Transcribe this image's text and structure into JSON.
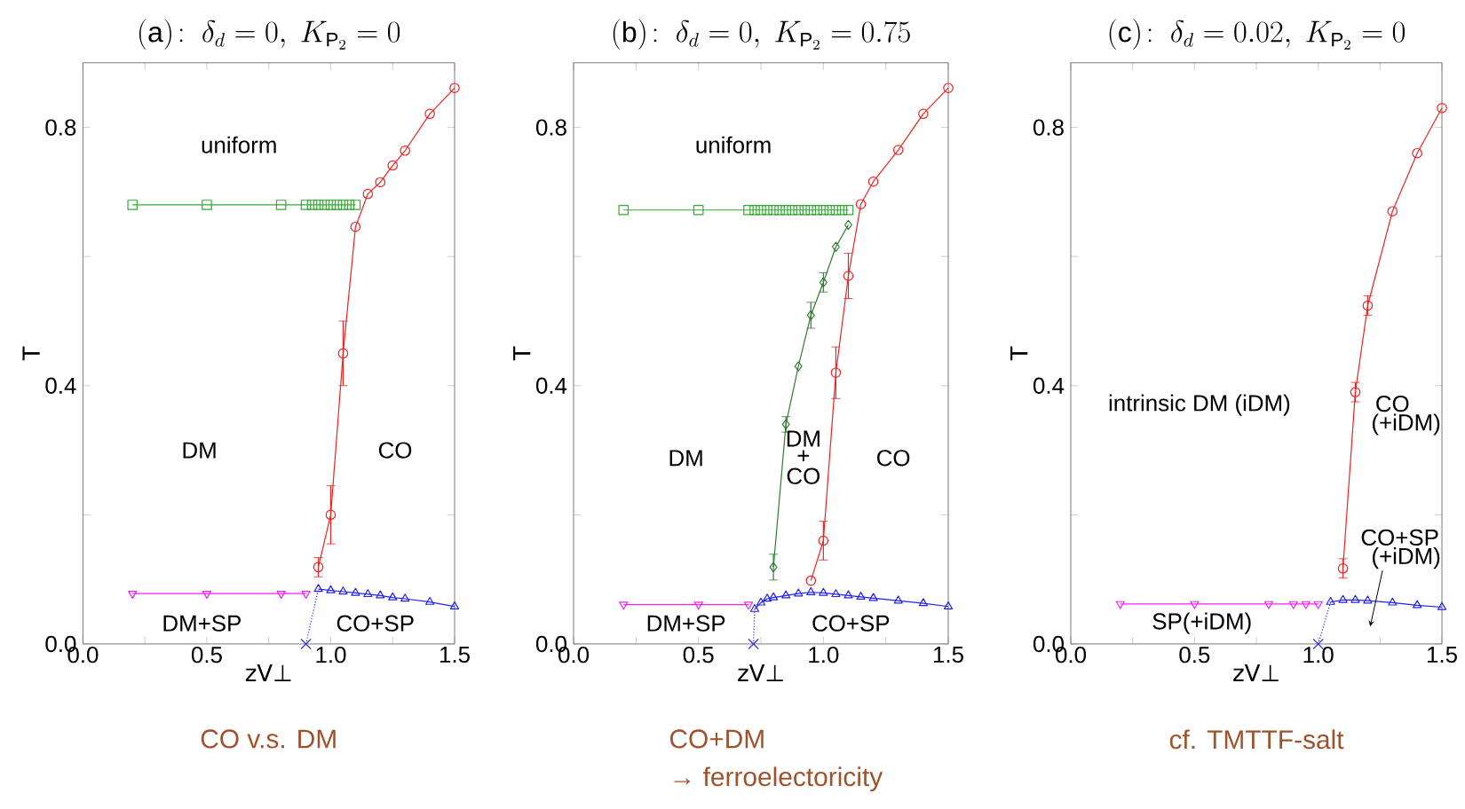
{
  "chart_data": [
    {
      "type": "line",
      "title": "\\mathrm{(a)}\\!:\\ \\delta_d = 0,\\ K_{\\mathrm{P}_2} = 0",
      "xlabel": "zV⊥",
      "ylabel": "T",
      "xlim": [
        0,
        1.5
      ],
      "ylim": [
        0,
        0.9
      ],
      "xticks": [
        {
          "value": 0,
          "label": "0.0"
        },
        {
          "value": 0.25,
          "label": null
        },
        {
          "value": 0.5,
          "label": "0.5"
        },
        {
          "value": 0.75,
          "label": null
        },
        {
          "value": 1,
          "label": "1.0"
        },
        {
          "value": 1.25,
          "label": null
        },
        {
          "value": 1.5,
          "label": "1.5"
        }
      ],
      "yticks": [
        {
          "value": 0,
          "label": "0.0"
        },
        {
          "value": 0.2,
          "label": null
        },
        {
          "value": 0.4,
          "label": "0.4"
        },
        {
          "value": 0.6,
          "label": null
        },
        {
          "value": 0.8,
          "label": "0.8"
        }
      ],
      "series": [
        {
          "type": "line",
          "color": "#33aa33",
          "marker": "square",
          "x": [
            0.2,
            0.5,
            0.8,
            0.9,
            0.925,
            0.95,
            0.975,
            1.0,
            1.025,
            1.05,
            1.075,
            1.1
          ],
          "values": [
            0.68,
            0.68,
            0.68,
            0.68,
            0.68,
            0.68,
            0.68,
            0.68,
            0.68,
            0.68,
            0.68,
            0.68
          ]
        },
        {
          "type": "line",
          "color": "#ee2222",
          "marker": "circle",
          "x": [
            0.95,
            1.0,
            1.05,
            1.1,
            1.15,
            1.2,
            1.25,
            1.3,
            1.4,
            1.5
          ],
          "values": [
            0.119,
            0.2,
            0.45,
            0.646,
            0.697,
            0.715,
            0.741,
            0.764,
            0.821,
            0.861
          ],
          "errors": [
            0.015,
            0.045,
            0.05,
            null,
            null,
            null,
            null,
            null,
            null,
            null
          ]
        },
        {
          "type": "line",
          "color": "#ee22ee",
          "marker": "triangle_down",
          "x": [
            0.2,
            0.5,
            0.8,
            0.9
          ],
          "values": [
            0.078,
            0.078,
            0.078,
            0.078
          ]
        },
        {
          "type": "line",
          "color": "#2222ee",
          "marker": "triangle",
          "x": [
            0.95,
            1.0,
            1.05,
            1.1,
            1.15,
            1.2,
            1.25,
            1.3,
            1.4,
            1.5
          ],
          "values": [
            0.085,
            0.083,
            0.081,
            0.079,
            0.077,
            0.075,
            0.072,
            0.07,
            0.065,
            0.058
          ]
        },
        {
          "type": "line",
          "color": "#2222ee",
          "marker": "none",
          "line_style": "dotted",
          "x": [
            0.9,
            0.95
          ],
          "values": [
            0,
            0.085
          ]
        },
        {
          "type": "scatter",
          "color": "#2222ee",
          "marker": "cross",
          "x": [
            0.9
          ],
          "values": [
            0
          ]
        }
      ],
      "annotations": [
        "uniform",
        "DM",
        "CO",
        "DM+SP",
        "CO+SP",
        "CO v.s. DM"
      ]
    },
    {
      "type": "line",
      "title": "\\mathrm{(b)}\\!:\\ \\delta_d = 0,\\ K_{\\mathrm{P}_2} = 0.75",
      "xlabel": "zV⊥",
      "ylabel": "T",
      "xlim": [
        0,
        1.5
      ],
      "ylim": [
        0,
        0.9
      ],
      "xticks": [
        {
          "value": 0,
          "label": "0.0"
        },
        {
          "value": 0.25,
          "label": null
        },
        {
          "value": 0.5,
          "label": "0.5"
        },
        {
          "value": 0.75,
          "label": null
        },
        {
          "value": 1,
          "label": "1.0"
        },
        {
          "value": 1.25,
          "label": null
        },
        {
          "value": 1.5,
          "label": "1.5"
        }
      ],
      "yticks": [
        {
          "value": 0,
          "label": "0.0"
        },
        {
          "value": 0.2,
          "label": null
        },
        {
          "value": 0.4,
          "label": "0.4"
        },
        {
          "value": 0.6,
          "label": null
        },
        {
          "value": 0.8,
          "label": "0.8"
        }
      ],
      "series": [
        {
          "type": "line",
          "color": "#33aa33",
          "marker": "square",
          "x": [
            0.2,
            0.5,
            0.7,
            0.725,
            0.75,
            0.775,
            0.8,
            0.825,
            0.85,
            0.875,
            0.9,
            0.925,
            0.95,
            0.975,
            1.0,
            1.025,
            1.05,
            1.075,
            1.1
          ],
          "values": [
            0.672,
            0.672,
            0.672,
            0.672,
            0.672,
            0.672,
            0.672,
            0.672,
            0.672,
            0.672,
            0.672,
            0.672,
            0.672,
            0.672,
            0.672,
            0.672,
            0.672,
            0.672,
            0.672
          ]
        },
        {
          "type": "line",
          "color": "#2e7d32",
          "marker": "diamond",
          "x": [
            0.8,
            0.85,
            0.9,
            0.95,
            1.0,
            1.05,
            1.1
          ],
          "values": [
            0.119,
            0.34,
            0.43,
            0.509,
            0.56,
            0.615,
            0.649
          ],
          "errors": [
            0.02,
            0.012,
            null,
            0.02,
            0.015,
            null,
            null
          ]
        },
        {
          "type": "line",
          "color": "#ee2222",
          "marker": "circle",
          "x": [
            0.95,
            1.0,
            1.05,
            1.1,
            1.15,
            1.2,
            1.3,
            1.4,
            1.5
          ],
          "values": [
            0.098,
            0.16,
            0.42,
            0.57,
            0.681,
            0.716,
            0.765,
            0.821,
            0.861
          ],
          "errors": [
            null,
            0.03,
            0.04,
            0.035,
            null,
            null,
            null,
            null,
            null
          ]
        },
        {
          "type": "line",
          "color": "#ee22ee",
          "marker": "triangle_down",
          "x": [
            0.2,
            0.5,
            0.7
          ],
          "values": [
            0.061,
            0.061,
            0.061
          ]
        },
        {
          "type": "line",
          "color": "#2222ee",
          "marker": "triangle",
          "x": [
            0.725,
            0.75,
            0.775,
            0.8,
            0.85,
            0.9,
            0.95,
            1.0,
            1.05,
            1.1,
            1.15,
            1.2,
            1.3,
            1.4,
            1.5
          ],
          "values": [
            0.054,
            0.064,
            0.07,
            0.072,
            0.075,
            0.078,
            0.08,
            0.079,
            0.077,
            0.075,
            0.073,
            0.071,
            0.067,
            0.063,
            0.058
          ]
        },
        {
          "type": "line",
          "color": "#2222ee",
          "marker": "none",
          "line_style": "dotted",
          "x": [
            0.72,
            0.725
          ],
          "values": [
            0,
            0.054
          ]
        },
        {
          "type": "scatter",
          "color": "#2222ee",
          "marker": "cross",
          "x": [
            0.72
          ],
          "values": [
            0
          ]
        }
      ],
      "annotations": [
        "uniform",
        "DM",
        "DM",
        "+",
        "CO",
        "CO",
        "DM+SP",
        "CO+SP",
        "CO+DM",
        "→ ferroelectoricity"
      ]
    },
    {
      "type": "line",
      "title": "\\mathrm{(c)}\\!:\\ \\delta_d = 0.02,\\ K_{\\mathrm{P}_2} = 0",
      "xlabel": "zV⊥",
      "ylabel": "T",
      "xlim": [
        0,
        1.5
      ],
      "ylim": [
        0,
        0.9
      ],
      "xticks": [
        {
          "value": 0,
          "label": "0.0"
        },
        {
          "value": 0.25,
          "label": null
        },
        {
          "value": 0.5,
          "label": "0.5"
        },
        {
          "value": 0.75,
          "label": null
        },
        {
          "value": 1,
          "label": "1.0"
        },
        {
          "value": 1.25,
          "label": null
        },
        {
          "value": 1.5,
          "label": "1.5"
        }
      ],
      "yticks": [
        {
          "value": 0,
          "label": "0.0"
        },
        {
          "value": 0.2,
          "label": null
        },
        {
          "value": 0.4,
          "label": "0.4"
        },
        {
          "value": 0.6,
          "label": null
        },
        {
          "value": 0.8,
          "label": "0.8"
        }
      ],
      "series": [
        {
          "type": "line",
          "color": "#ee2222",
          "marker": "circle",
          "x": [
            1.1,
            1.15,
            1.2,
            1.3,
            1.4,
            1.5
          ],
          "values": [
            0.117,
            0.39,
            0.524,
            0.67,
            0.76,
            0.83
          ],
          "errors": [
            0.015,
            0.015,
            0.015,
            null,
            null,
            null
          ]
        },
        {
          "type": "line",
          "color": "#ee22ee",
          "marker": "triangle_down",
          "x": [
            0.2,
            0.5,
            0.8,
            0.9,
            0.95,
            1.0
          ],
          "values": [
            0.062,
            0.062,
            0.062,
            0.062,
            0.062,
            0.062
          ]
        },
        {
          "type": "line",
          "color": "#2222ee",
          "marker": "triangle",
          "x": [
            1.05,
            1.1,
            1.15,
            1.2,
            1.3,
            1.4,
            1.5
          ],
          "values": [
            0.065,
            0.068,
            0.068,
            0.067,
            0.064,
            0.06,
            0.057
          ]
        },
        {
          "type": "line",
          "color": "#2222ee",
          "marker": "none",
          "line_style": "dotted",
          "x": [
            1.0,
            1.05
          ],
          "values": [
            0,
            0.065
          ]
        },
        {
          "type": "scatter",
          "color": "#2222ee",
          "marker": "cross",
          "x": [
            1.0
          ],
          "values": [
            0
          ]
        }
      ],
      "annotations": [
        "intrinsic DM (iDM)",
        "CO",
        "(+iDM)",
        "CO+SP",
        "(+iDM)",
        "SP(+iDM)",
        "cf. TMTTF-salt"
      ]
    }
  ]
}
